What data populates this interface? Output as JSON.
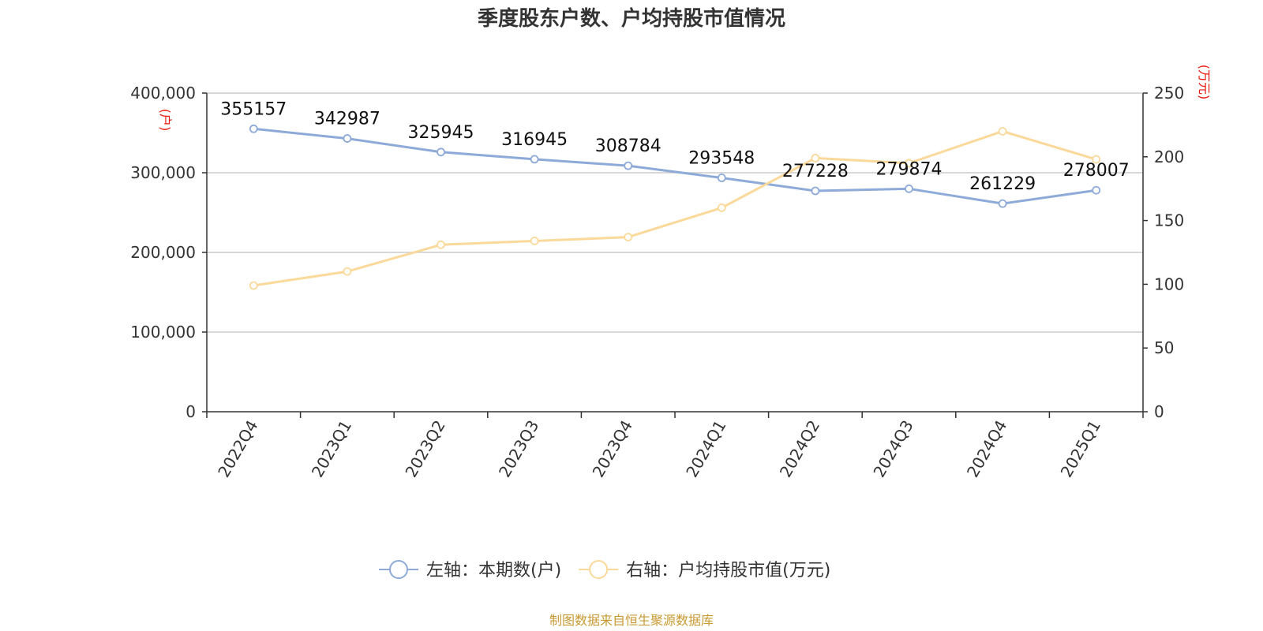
{
  "chart_data": {
    "type": "line",
    "title": "季度股东户数、户均持股市值情况",
    "categories": [
      "2022Q4",
      "2023Q1",
      "2023Q2",
      "2023Q3",
      "2023Q4",
      "2024Q1",
      "2024Q2",
      "2024Q3",
      "2024Q4",
      "2025Q1"
    ],
    "y_left": {
      "unit": "(户)",
      "range": [
        0,
        400000
      ],
      "ticks": [
        "0",
        "100,000",
        "200,000",
        "300,000",
        "400,000"
      ]
    },
    "y_right": {
      "unit": "(万元)",
      "range": [
        0,
        250
      ],
      "ticks": [
        "0",
        "50",
        "100",
        "150",
        "200",
        "250"
      ]
    },
    "grid": true,
    "legend_position": "bottom",
    "series": [
      {
        "name": "左轴：本期数(户)",
        "axis": "left",
        "color": "#8eaad8",
        "values": [
          355157,
          342987,
          325945,
          316945,
          308784,
          293548,
          277228,
          279874,
          261229,
          278007
        ],
        "labels": [
          "355157",
          "342987",
          "325945",
          "316945",
          "308784",
          "293548",
          "277228",
          "279874",
          "261229",
          "278007"
        ]
      },
      {
        "name": "右轴：户均持股市值(万元)",
        "axis": "right",
        "color": "#fad99b",
        "values": [
          99,
          110,
          131,
          134,
          137,
          160,
          199,
          195,
          220,
          198
        ]
      }
    ],
    "source": "制图数据来自恒生聚源数据库"
  }
}
